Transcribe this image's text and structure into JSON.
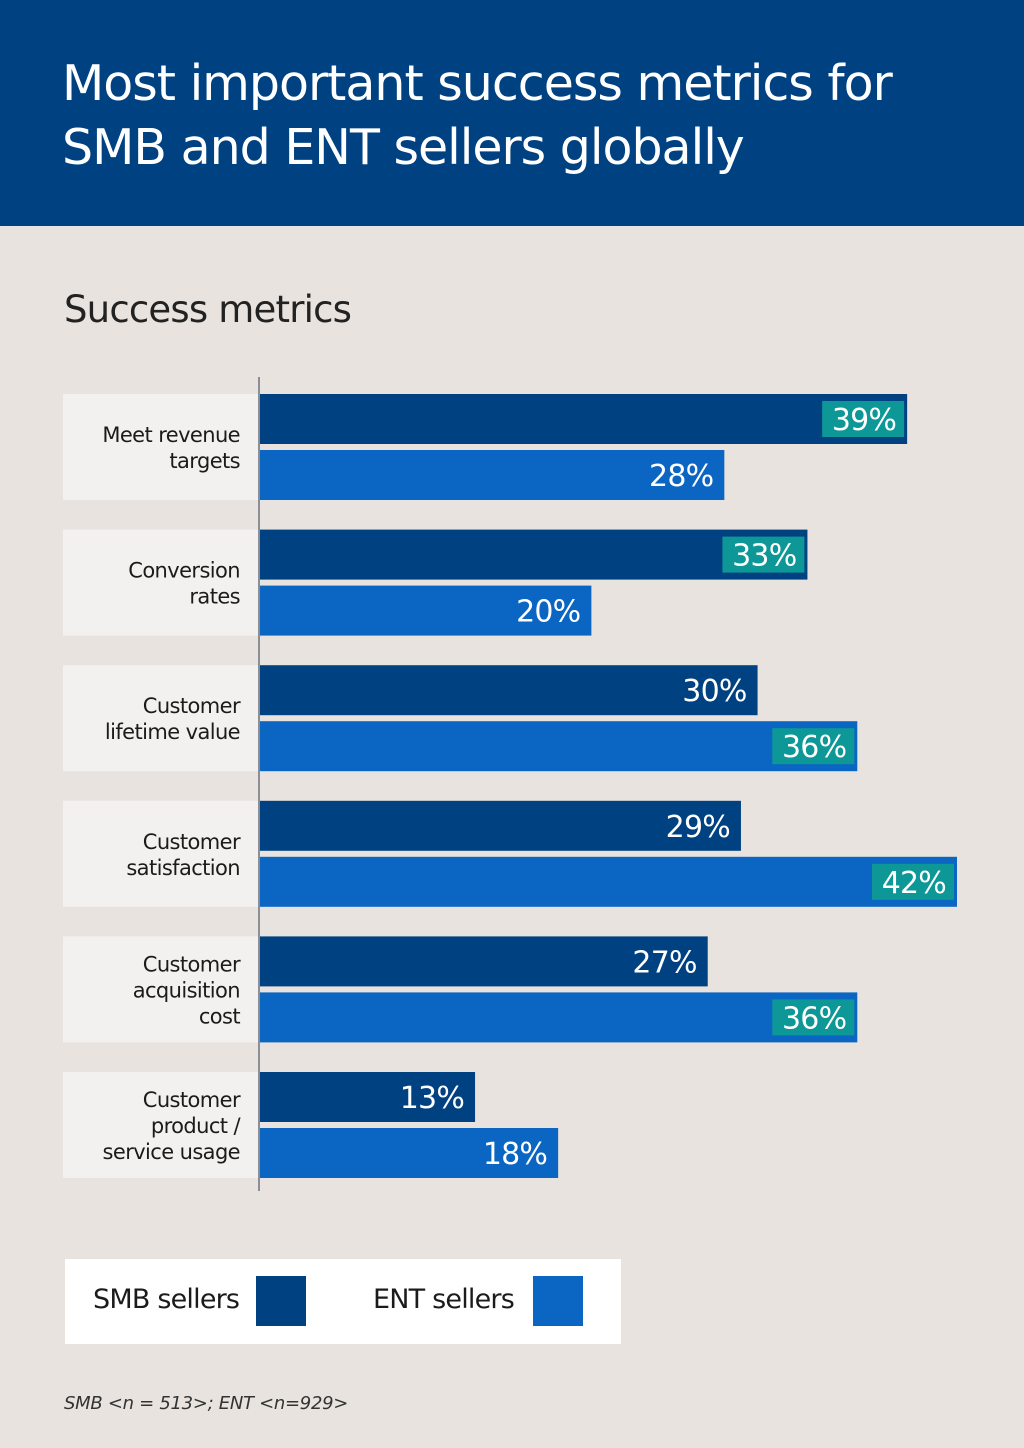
{
  "header": {
    "title": "Most important success metrics for SMB and ENT sellers globally"
  },
  "subtitle": "Success metrics",
  "colors": {
    "smb": "#004182",
    "ent": "#0a66c2",
    "highlight": "#0d9797",
    "category_bg": "#f3f1ef",
    "background": "#e8e3de"
  },
  "legend": {
    "smb_label": "SMB sellers",
    "ent_label": "ENT sellers"
  },
  "note": "SMB <n = 513>; ENT <n=929>",
  "chart_data": {
    "type": "bar",
    "orientation": "horizontal",
    "categories": [
      "Meet revenue targets",
      "Conversion rates",
      "Customer lifetime value",
      "Customer satisfaction",
      "Customer acquisition cost",
      "Customer product / service usage"
    ],
    "category_lines": [
      [
        "Meet revenue",
        "targets"
      ],
      [
        "Conversion",
        "rates"
      ],
      [
        "Customer",
        "lifetime value"
      ],
      [
        "Customer",
        "satisfaction"
      ],
      [
        "Customer",
        "acquisition",
        "cost"
      ],
      [
        "Customer",
        "product /",
        "service usage"
      ]
    ],
    "series": [
      {
        "name": "SMB sellers",
        "values": [
          39,
          33,
          30,
          29,
          27,
          13
        ],
        "highlighted": [
          true,
          true,
          false,
          false,
          false,
          false
        ]
      },
      {
        "name": "ENT sellers",
        "values": [
          28,
          20,
          36,
          42,
          36,
          18
        ],
        "highlighted": [
          false,
          false,
          true,
          true,
          true,
          false
        ]
      }
    ],
    "value_suffix": "%",
    "xlim": [
      0,
      42
    ],
    "grid": false
  }
}
